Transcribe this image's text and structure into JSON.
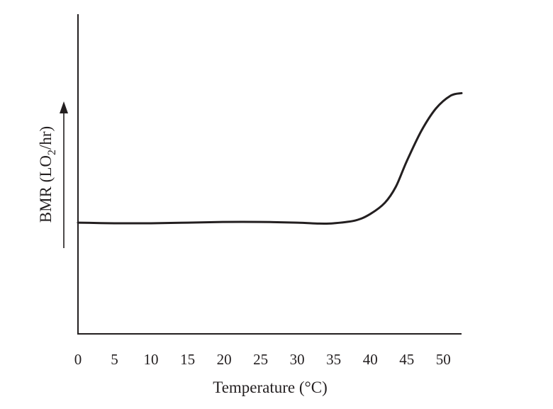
{
  "chart_data": {
    "type": "line",
    "xlabel": "Temperature (°C)",
    "ylabel": "BMR (LO",
    "ylabel_subscript": "2",
    "ylabel_suffix": "/hr)",
    "xticks": [
      "0",
      "5",
      "10",
      "15",
      "20",
      "25",
      "30",
      "35",
      "40",
      "45",
      "50"
    ],
    "xlim": [
      0,
      52.5
    ],
    "ylim": [
      0,
      100
    ],
    "y_tick_labels": false,
    "grid": false,
    "series": [
      {
        "x": [
          0,
          5,
          10,
          15,
          20,
          25,
          30,
          33,
          35,
          38,
          40,
          42,
          43.5,
          45,
          47,
          49,
          51,
          52.5
        ],
        "y": [
          34.8,
          34.6,
          34.6,
          34.8,
          35.0,
          35.0,
          34.8,
          34.5,
          34.6,
          35.5,
          37.5,
          41.0,
          46.0,
          54.0,
          63.5,
          70.5,
          74.5,
          75.3
        ]
      }
    ]
  }
}
